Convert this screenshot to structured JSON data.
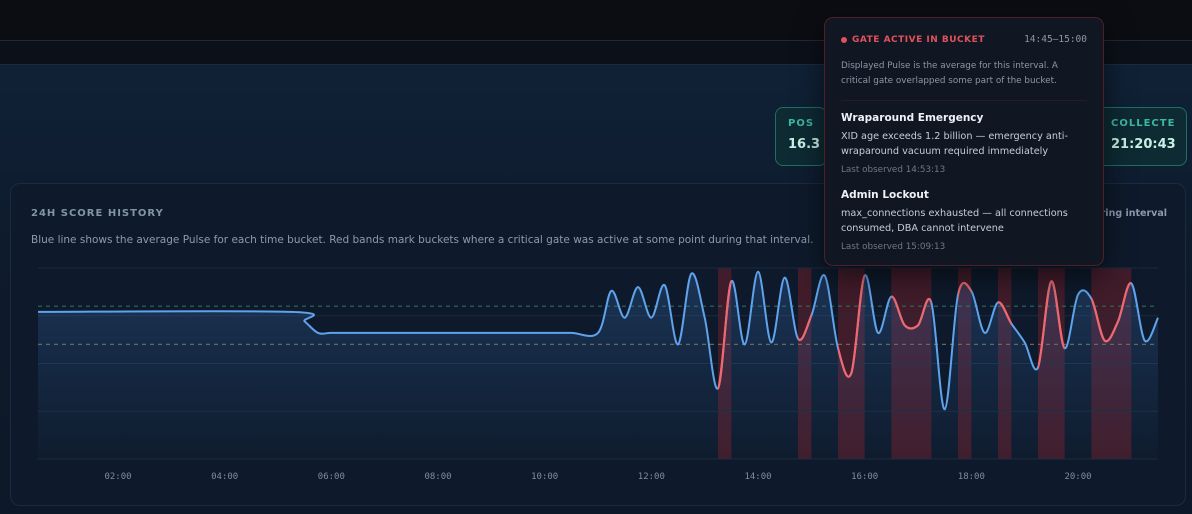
{
  "stats": [
    {
      "label": "POSTG",
      "value": "16.3"
    },
    {
      "label": "COLLECTED",
      "value": "21:20:43"
    }
  ],
  "chart_header": {
    "title": "24H SCORE HISTORY",
    "description": "Blue line shows the average Pulse for each time bucket. Red bands mark buckets where a critical gate was active at some point during that interval.",
    "legend_right": "during interval"
  },
  "tooltip": {
    "title": "GATE ACTIVE IN BUCKET",
    "time_range": "14:45–15:00",
    "description": "Displayed Pulse is the average for this interval. A critical gate overlapped some part of the bucket.",
    "gates": [
      {
        "name": "Wraparound Emergency",
        "text": "XID age exceeds 1.2 billion — emergency anti-wraparound vacuum required immediately",
        "observed": "Last observed 14:53:13"
      },
      {
        "name": "Admin Lockout",
        "text": "max_connections exhausted — all connections consumed, DBA cannot intervene",
        "observed": "Last observed 15:09:13"
      }
    ]
  },
  "colors": {
    "line": "#5fa3ec",
    "gate_line": "#f0686d",
    "gate_band": "#4a1d2a",
    "threshold_green": "#2f6b5c",
    "threshold_amber": "#6d6650"
  },
  "chart_data": {
    "type": "line",
    "title": "24H SCORE HISTORY",
    "xlabel": "",
    "ylabel": "",
    "x_ticks": [
      "02:00",
      "04:00",
      "06:00",
      "08:00",
      "10:00",
      "12:00",
      "14:00",
      "16:00",
      "18:00",
      "20:00"
    ],
    "xlim": [
      "00:30",
      "21:30"
    ],
    "ylim": [
      0,
      100
    ],
    "grid": true,
    "thresholds": [
      {
        "value": 80,
        "color": "#2f6b5c"
      },
      {
        "value": 60,
        "color": "#6d6650"
      }
    ],
    "series": [
      {
        "x": [
          "00:30",
          "05:15",
          "05:30",
          "05:45",
          "06:00",
          "06:30",
          "07:00",
          "07:30",
          "08:00",
          "08:30",
          "09:00",
          "09:30",
          "10:00",
          "10:30",
          "11:00",
          "11:15",
          "11:30",
          "11:45",
          "12:00",
          "12:15",
          "12:30",
          "12:45",
          "13:00",
          "13:15",
          "13:30",
          "13:45",
          "14:00",
          "14:15",
          "14:30",
          "14:45",
          "15:00",
          "15:15",
          "15:30",
          "15:45",
          "16:00",
          "16:15",
          "16:30",
          "16:45",
          "17:00",
          "17:15",
          "17:30",
          "17:45",
          "18:00",
          "18:15",
          "18:30",
          "18:45",
          "19:00",
          "19:15",
          "19:30",
          "19:45",
          "20:00",
          "20:15",
          "20:30",
          "20:45",
          "21:00",
          "21:15",
          "21:30"
        ],
        "y": [
          77,
          77,
          72,
          66,
          66,
          66,
          66,
          66,
          66,
          66,
          66,
          66,
          66,
          66,
          66,
          88,
          74,
          90,
          74,
          91,
          60,
          97,
          74,
          37,
          93,
          60,
          98,
          61,
          95,
          63,
          75,
          96,
          58,
          45,
          96,
          66,
          85,
          70,
          70,
          82,
          26,
          86,
          88,
          66,
          82,
          71,
          61,
          48,
          93,
          58,
          86,
          84,
          62,
          72,
          92,
          62,
          74
        ]
      }
    ],
    "gate_bands": [
      [
        "13:15",
        "13:30"
      ],
      [
        "14:45",
        "15:00"
      ],
      [
        "15:30",
        "16:00"
      ],
      [
        "16:30",
        "17:15"
      ],
      [
        "17:45",
        "18:00"
      ],
      [
        "18:30",
        "18:45"
      ],
      [
        "19:15",
        "19:45"
      ],
      [
        "20:15",
        "21:00"
      ]
    ]
  }
}
